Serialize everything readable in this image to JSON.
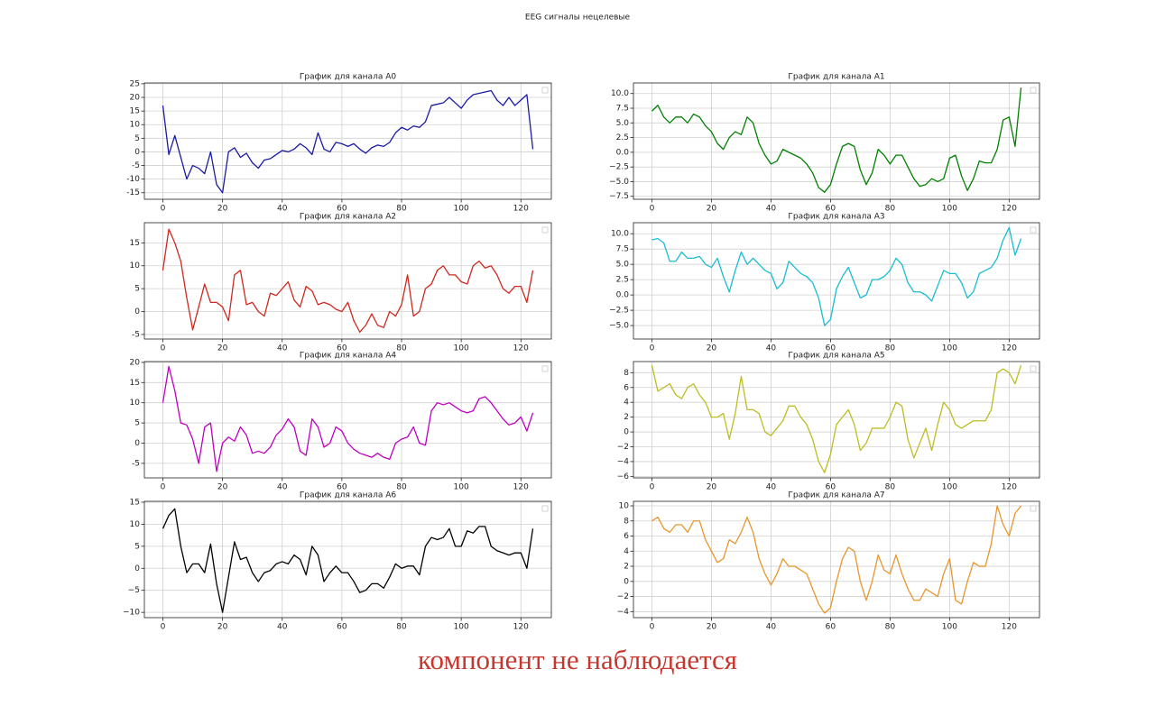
{
  "figure_title": "EEG сигналы нецелевые",
  "caption": "компонент не наблюдается",
  "chart_data": [
    {
      "type": "line",
      "title": "График для канала A0",
      "color": "#1a1aa6",
      "grid": true,
      "x": [
        0,
        2,
        4,
        6,
        8,
        10,
        12,
        14,
        16,
        18,
        20,
        22,
        24,
        26,
        28,
        30,
        32,
        34,
        36,
        38,
        40,
        42,
        44,
        46,
        48,
        50,
        52,
        54,
        56,
        58,
        60,
        62,
        64,
        66,
        68,
        70,
        72,
        74,
        76,
        78,
        80,
        82,
        84,
        86,
        88,
        90,
        92,
        94,
        96,
        98,
        100,
        102,
        104,
        106,
        108,
        110,
        112,
        114,
        116,
        118,
        120,
        122,
        124
      ],
      "values": [
        17,
        -1,
        6,
        -2,
        -10,
        -5,
        -6,
        -8,
        0,
        -12,
        -15,
        0,
        1.5,
        -2,
        -0.5,
        -4,
        -6,
        -3,
        -2.5,
        -1,
        0.5,
        0,
        1,
        3,
        1.5,
        -1,
        7,
        1,
        0,
        3.5,
        3,
        2,
        3,
        1,
        -0.5,
        1.5,
        2.5,
        2,
        3.5,
        7,
        9,
        8,
        9.5,
        9,
        11,
        17,
        17.5,
        18,
        20,
        18,
        16,
        19,
        21,
        21.5,
        22,
        22.5,
        19,
        17,
        20,
        17,
        19,
        21,
        1
      ],
      "xlim": [
        -6.2,
        130.2
      ],
      "xticks": [
        0,
        20,
        40,
        60,
        80,
        100,
        120
      ],
      "ylim": [
        -17.4,
        25.3
      ],
      "yticks": [
        -15,
        -10,
        -5,
        0,
        5,
        10,
        15,
        20,
        25
      ]
    },
    {
      "type": "line",
      "title": "График для канала A1",
      "color": "#008000",
      "grid": true,
      "x": [
        0,
        2,
        4,
        6,
        8,
        10,
        12,
        14,
        16,
        18,
        20,
        22,
        24,
        26,
        28,
        30,
        32,
        34,
        36,
        38,
        40,
        42,
        44,
        46,
        48,
        50,
        52,
        54,
        56,
        58,
        60,
        62,
        64,
        66,
        68,
        70,
        72,
        74,
        76,
        78,
        80,
        82,
        84,
        86,
        88,
        90,
        92,
        94,
        96,
        98,
        100,
        102,
        104,
        106,
        108,
        110,
        112,
        114,
        116,
        118,
        120,
        122,
        124
      ],
      "values": [
        7,
        8,
        6,
        5,
        6,
        6,
        5,
        6.5,
        6,
        4.5,
        3.5,
        1.5,
        0.5,
        2.5,
        3.5,
        3,
        6,
        5,
        1.5,
        -0.5,
        -2,
        -1.5,
        0.5,
        0,
        -0.5,
        -1,
        -2,
        -3.5,
        -6,
        -6.8,
        -5.5,
        -2,
        1,
        1.5,
        1,
        -3,
        -5.5,
        -3.5,
        0.5,
        -0.5,
        -2,
        -0.5,
        -0.5,
        -2.5,
        -4.5,
        -5.8,
        -5.5,
        -4.5,
        -5,
        -4.5,
        -1,
        -0.5,
        -4,
        -6.5,
        -4.5,
        -1.5,
        -1.8,
        -1.8,
        0.5,
        5.5,
        6,
        1,
        11
      ],
      "xlim": [
        -6.2,
        130.2
      ],
      "xticks": [
        0,
        20,
        40,
        60,
        80,
        100,
        120
      ],
      "ylim": [
        -8,
        11.8
      ],
      "yticks": [
        {
          "value": -7.5,
          "label": "−7.5"
        },
        {
          "value": -5,
          "label": "−5.0"
        },
        {
          "value": -2.5,
          "label": "−2.5"
        },
        {
          "value": 0,
          "label": "0.0"
        },
        {
          "value": 2.5,
          "label": "2.5"
        },
        {
          "value": 5,
          "label": "5.0"
        },
        {
          "value": 7.5,
          "label": "7.5"
        },
        {
          "value": 10,
          "label": "10.0"
        }
      ]
    },
    {
      "type": "line",
      "title": "График для канала A2",
      "color": "#d0281e",
      "grid": true,
      "x": [
        0,
        2,
        4,
        6,
        8,
        10,
        12,
        14,
        16,
        18,
        20,
        22,
        24,
        26,
        28,
        30,
        32,
        34,
        36,
        38,
        40,
        42,
        44,
        46,
        48,
        50,
        52,
        54,
        56,
        58,
        60,
        62,
        64,
        66,
        68,
        70,
        72,
        74,
        76,
        78,
        80,
        82,
        84,
        86,
        88,
        90,
        92,
        94,
        96,
        98,
        100,
        102,
        104,
        106,
        108,
        110,
        112,
        114,
        116,
        118,
        120,
        122,
        124
      ],
      "values": [
        9,
        18,
        15,
        11,
        3,
        -4,
        1,
        6,
        2,
        2,
        1,
        -2,
        8,
        9,
        1.5,
        2,
        0,
        -1,
        4,
        3.5,
        5,
        6.5,
        2.5,
        1,
        5.5,
        4.5,
        1.5,
        2,
        1.5,
        0.5,
        0,
        2,
        -2,
        -4.5,
        -3,
        -0.5,
        -3,
        -3.5,
        0,
        -1,
        1.5,
        8,
        -1,
        0,
        5,
        6,
        9,
        10,
        8,
        8,
        6.5,
        6,
        10,
        11,
        9.5,
        10,
        8,
        5,
        4,
        5.5,
        5.5,
        2,
        9
      ],
      "xlim": [
        -6.2,
        130.2
      ],
      "xticks": [
        0,
        20,
        40,
        60,
        80,
        100,
        120
      ],
      "ylim": [
        -6,
        19.4
      ],
      "yticks": [
        -5,
        0,
        5,
        10,
        15
      ]
    },
    {
      "type": "line",
      "title": "График для канала A3",
      "color": "#17becf",
      "grid": true,
      "x": [
        0,
        2,
        4,
        6,
        8,
        10,
        12,
        14,
        16,
        18,
        20,
        22,
        24,
        26,
        28,
        30,
        32,
        34,
        36,
        38,
        40,
        42,
        44,
        46,
        48,
        50,
        52,
        54,
        56,
        58,
        60,
        62,
        64,
        66,
        68,
        70,
        72,
        74,
        76,
        78,
        80,
        82,
        84,
        86,
        88,
        90,
        92,
        94,
        96,
        98,
        100,
        102,
        104,
        106,
        108,
        110,
        112,
        114,
        116,
        118,
        120,
        122,
        124
      ],
      "values": [
        9,
        9.2,
        8.5,
        5.5,
        5.5,
        7,
        6,
        6,
        6.3,
        5,
        4.5,
        6,
        3,
        0.5,
        4,
        7,
        5,
        6,
        5,
        4,
        3.5,
        1,
        2,
        5.5,
        4.5,
        3.5,
        3,
        2,
        -0.5,
        -5,
        -4,
        1,
        3,
        4.5,
        2,
        -0.5,
        0,
        2.5,
        2.5,
        3,
        4,
        6,
        5,
        2,
        0.5,
        0.5,
        0,
        -1,
        1.5,
        4,
        3.5,
        3.5,
        2,
        -0.5,
        0.5,
        3.5,
        4,
        4.5,
        6,
        9,
        11,
        6.5,
        9.2
      ],
      "xlim": [
        -6.2,
        130.2
      ],
      "xticks": [
        0,
        20,
        40,
        60,
        80,
        100,
        120
      ],
      "ylim": [
        -7.2,
        11.8
      ],
      "yticks": [
        {
          "value": -5,
          "label": "−5.0"
        },
        {
          "value": -2.5,
          "label": "−2.5"
        },
        {
          "value": 0,
          "label": "0.0"
        },
        {
          "value": 2.5,
          "label": "2.5"
        },
        {
          "value": 5,
          "label": "5.0"
        },
        {
          "value": 7.5,
          "label": "7.5"
        },
        {
          "value": 10,
          "label": "10.0"
        }
      ]
    },
    {
      "type": "line",
      "title": "График для канала A4",
      "color": "#bf00bf",
      "grid": true,
      "x": [
        0,
        2,
        4,
        6,
        8,
        10,
        12,
        14,
        16,
        18,
        20,
        22,
        24,
        26,
        28,
        30,
        32,
        34,
        36,
        38,
        40,
        42,
        44,
        46,
        48,
        50,
        52,
        54,
        56,
        58,
        60,
        62,
        64,
        66,
        68,
        70,
        72,
        74,
        76,
        78,
        80,
        82,
        84,
        86,
        88,
        90,
        92,
        94,
        96,
        98,
        100,
        102,
        104,
        106,
        108,
        110,
        112,
        114,
        116,
        118,
        120,
        122,
        124
      ],
      "values": [
        10,
        19,
        13,
        5,
        4.5,
        1,
        -5,
        4,
        5,
        -7,
        0,
        1.5,
        0.5,
        4,
        2,
        -2.5,
        -2,
        -2.5,
        -1,
        2,
        3.5,
        6,
        4,
        -2,
        -3,
        6,
        4,
        -1,
        0,
        4,
        3,
        0,
        -1.5,
        -2.5,
        -3,
        -3.5,
        -2.5,
        -3.5,
        -4,
        0,
        1,
        1.5,
        4,
        0,
        -0.5,
        8,
        10,
        9.5,
        10,
        9,
        8,
        7.5,
        8,
        11,
        11.5,
        10,
        8,
        6,
        4.5,
        5,
        6.5,
        3,
        7.5
      ],
      "xlim": [
        -6.2,
        130.2
      ],
      "xticks": [
        0,
        20,
        40,
        60,
        80,
        100,
        120
      ],
      "ylim": [
        -8.6,
        20.2
      ],
      "yticks": [
        -5,
        0,
        5,
        10,
        15,
        20
      ]
    },
    {
      "type": "line",
      "title": "График для канала A5",
      "color": "#bcbd22",
      "grid": true,
      "x": [
        0,
        2,
        4,
        6,
        8,
        10,
        12,
        14,
        16,
        18,
        20,
        22,
        24,
        26,
        28,
        30,
        32,
        34,
        36,
        38,
        40,
        42,
        44,
        46,
        48,
        50,
        52,
        54,
        56,
        58,
        60,
        62,
        64,
        66,
        68,
        70,
        72,
        74,
        76,
        78,
        80,
        82,
        84,
        86,
        88,
        90,
        92,
        94,
        96,
        98,
        100,
        102,
        104,
        106,
        108,
        110,
        112,
        114,
        116,
        118,
        120,
        122,
        124
      ],
      "values": [
        9,
        5.5,
        6,
        6.5,
        5,
        4.5,
        6,
        6.5,
        5,
        4,
        2,
        2,
        2.5,
        -1,
        2.5,
        7.5,
        3,
        3,
        2.5,
        0,
        -0.5,
        0.5,
        1.5,
        3.5,
        3.5,
        2,
        1,
        -1,
        -4,
        -5.5,
        -3,
        1,
        2,
        3,
        1,
        -2.5,
        -1.5,
        0.5,
        0.5,
        0.5,
        2,
        4,
        3.5,
        -1,
        -3.5,
        -1.5,
        0.5,
        -2.5,
        1,
        4,
        3,
        1,
        0.5,
        1,
        1.5,
        1.5,
        1.5,
        3,
        8,
        8.5,
        8,
        6.5,
        9
      ],
      "xlim": [
        -6.2,
        130.2
      ],
      "xticks": [
        0,
        20,
        40,
        60,
        80,
        100,
        120
      ],
      "ylim": [
        -6.2,
        9.5
      ],
      "yticks": [
        {
          "value": -6,
          "label": "−6"
        },
        {
          "value": -4,
          "label": "−4"
        },
        {
          "value": -2,
          "label": "−2"
        },
        0,
        2,
        4,
        6,
        8
      ]
    },
    {
      "type": "line",
      "title": "График для канала A6",
      "color": "#000000",
      "grid": true,
      "x": [
        0,
        2,
        4,
        6,
        8,
        10,
        12,
        14,
        16,
        18,
        20,
        22,
        24,
        26,
        28,
        30,
        32,
        34,
        36,
        38,
        40,
        42,
        44,
        46,
        48,
        50,
        52,
        54,
        56,
        58,
        60,
        62,
        64,
        66,
        68,
        70,
        72,
        74,
        76,
        78,
        80,
        82,
        84,
        86,
        88,
        90,
        92,
        94,
        96,
        98,
        100,
        102,
        104,
        106,
        108,
        110,
        112,
        114,
        116,
        118,
        120,
        122,
        124
      ],
      "values": [
        9,
        12,
        13.5,
        5,
        -1,
        1,
        1,
        -1,
        5.5,
        -3.5,
        -10,
        -2,
        6,
        2,
        2.5,
        -1,
        -3,
        -1,
        -0.5,
        1,
        1.5,
        1,
        3,
        2,
        -1.5,
        5,
        3,
        -3,
        -1,
        0.5,
        -1,
        -1,
        -3,
        -5.5,
        -5,
        -3.5,
        -3.5,
        -4.5,
        -2,
        1,
        0,
        0.5,
        0.5,
        -1.5,
        5,
        7,
        6.5,
        7,
        9,
        5,
        5,
        8.5,
        8,
        9.5,
        9.5,
        5,
        4,
        3.5,
        3,
        3.5,
        3.5,
        0,
        9
      ],
      "xlim": [
        -6.2,
        130.2
      ],
      "xticks": [
        0,
        20,
        40,
        60,
        80,
        100,
        120
      ],
      "ylim": [
        -11.2,
        15.2
      ],
      "yticks": [
        {
          "value": -10,
          "label": "−10"
        },
        {
          "value": -5,
          "label": "−5"
        },
        0,
        5,
        10,
        15
      ]
    },
    {
      "type": "line",
      "title": "График для канала A7",
      "color": "#e8962e",
      "grid": true,
      "x": [
        0,
        2,
        4,
        6,
        8,
        10,
        12,
        14,
        16,
        18,
        20,
        22,
        24,
        26,
        28,
        30,
        32,
        34,
        36,
        38,
        40,
        42,
        44,
        46,
        48,
        50,
        52,
        54,
        56,
        58,
        60,
        62,
        64,
        66,
        68,
        70,
        72,
        74,
        76,
        78,
        80,
        82,
        84,
        86,
        88,
        90,
        92,
        94,
        96,
        98,
        100,
        102,
        104,
        106,
        108,
        110,
        112,
        114,
        116,
        118,
        120,
        122,
        124
      ],
      "values": [
        8,
        8.5,
        7,
        6.5,
        7.5,
        7.5,
        6.5,
        8,
        8,
        5.5,
        4,
        2.5,
        3,
        5.5,
        5,
        6.5,
        8.5,
        6.5,
        3,
        1,
        -0.5,
        1,
        3,
        2,
        2,
        1.5,
        1,
        -1,
        -3,
        -4.2,
        -3.5,
        0,
        3,
        4.5,
        4,
        0,
        -2.5,
        0,
        3.5,
        1.5,
        1,
        3.5,
        1,
        -1,
        -2.5,
        -2.5,
        -1,
        -1.5,
        -2,
        1,
        3,
        -2.5,
        -3,
        0,
        2.5,
        2,
        2,
        5,
        10,
        7.5,
        6,
        9,
        10
      ],
      "xlim": [
        -6.2,
        130.2
      ],
      "xticks": [
        0,
        20,
        40,
        60,
        80,
        100,
        120
      ],
      "ylim": [
        -4.8,
        10.6
      ],
      "yticks": [
        {
          "value": -4,
          "label": "−4"
        },
        {
          "value": -2,
          "label": "−2"
        },
        0,
        2,
        4,
        6,
        8,
        10
      ]
    }
  ]
}
